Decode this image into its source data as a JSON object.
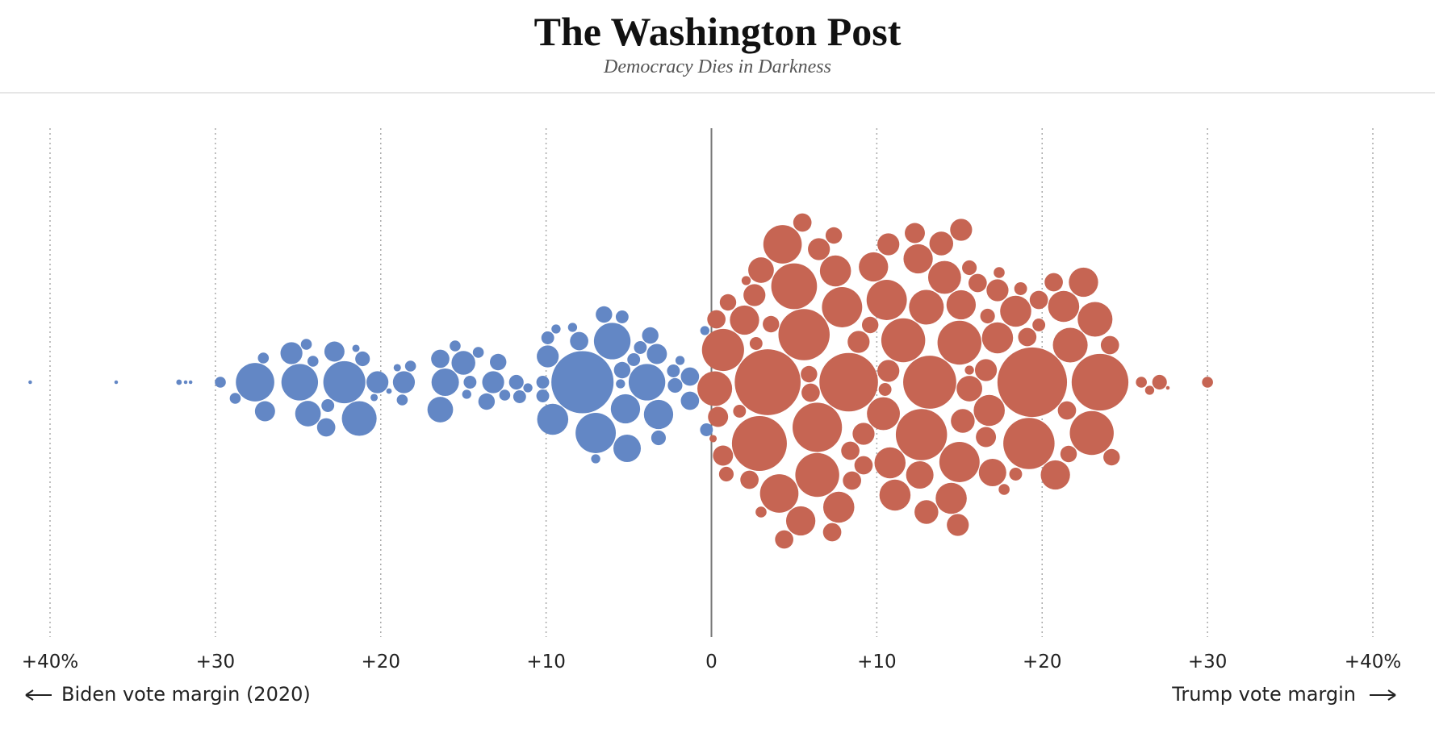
{
  "header": {
    "title": "The Washington Post",
    "tagline": "Democracy Dies in Darkness"
  },
  "chart_data": {
    "type": "beeswarm",
    "xlim": [
      -40,
      40
    ],
    "xticks": [
      {
        "value": -40,
        "label": "+40%"
      },
      {
        "value": -30,
        "label": "+30"
      },
      {
        "value": -20,
        "label": "+20"
      },
      {
        "value": -10,
        "label": "+10"
      },
      0,
      {
        "value": 10,
        "label": "+10"
      },
      {
        "value": 20,
        "label": "+20"
      },
      {
        "value": 30,
        "label": "+30"
      },
      {
        "value": 40,
        "label": "+40%"
      }
    ],
    "grid": true,
    "annotations": {
      "left": "Biden vote margin (2020)",
      "right": "Trump vote margin"
    },
    "series": [
      {
        "color": "#6387c5",
        "x": [
          -41.2,
          -36.0,
          -32.2,
          -31.8,
          -31.5,
          -29.7,
          -28.8,
          -27.6,
          -27.0,
          -27.1,
          -25.4,
          -24.9,
          -24.4,
          -22.8,
          -23.3,
          -22.2,
          -21.3,
          -24.1,
          -24.5,
          -23.2,
          -21.1,
          -20.2,
          -21.5,
          -20.4,
          -18.6,
          -18.7,
          -18.2,
          -19.0,
          -19.5,
          -16.1,
          -16.4,
          -16.4,
          -15.0,
          -14.6,
          -15.5,
          -14.8,
          -14.1,
          -13.6,
          -13.2,
          -12.9,
          -12.5,
          -11.8,
          -11.6,
          -11.1,
          -9.9,
          -9.6,
          -10.2,
          -9.9,
          -10.2,
          -9.4,
          -7.8,
          -8.0,
          -7.0,
          -6.0,
          -6.5,
          -5.2,
          -5.1,
          -5.4,
          -5.5,
          -3.9,
          -3.2,
          -5.4,
          -4.7,
          -3.7,
          -3.2,
          -3.3,
          -4.3,
          -2.3,
          -1.3,
          -2.2,
          -1.9,
          -1.3,
          -0.3,
          -0.4,
          -8.4,
          -7.0
        ],
        "sizes": [
          2,
          2,
          3,
          2,
          2,
          6,
          6,
          21,
          11,
          6,
          12,
          20,
          14,
          11,
          10,
          23,
          19,
          6,
          6,
          7,
          8,
          12,
          4,
          4,
          12,
          6,
          6,
          4,
          3,
          15,
          14,
          10,
          13,
          7,
          6,
          5,
          6,
          9,
          12,
          9,
          6,
          8,
          7,
          5,
          12,
          17,
          7,
          7,
          7,
          5,
          34,
          10,
          22,
          20,
          9,
          16,
          15,
          7,
          5,
          20,
          16,
          9,
          7,
          9,
          8,
          11,
          7,
          7,
          10,
          8,
          5,
          10,
          7,
          5,
          5,
          5
        ]
      },
      {
        "color": "#c66553",
        "x": [
          0.1,
          0.9,
          0.3,
          0.7,
          0.2,
          0.4,
          0.7,
          1.0,
          1.7,
          2.0,
          2.3,
          2.6,
          3.0,
          2.9,
          3.4,
          2.7,
          2.1,
          3.0,
          3.6,
          4.1,
          4.3,
          4.4,
          5.0,
          5.4,
          5.6,
          6.4,
          6.4,
          5.5,
          6.0,
          5.9,
          6.5,
          7.3,
          7.5,
          8.4,
          7.9,
          7.7,
          8.3,
          7.4,
          8.9,
          9.2,
          8.5,
          9.2,
          9.6,
          9.8,
          10.4,
          10.6,
          10.8,
          11.1,
          10.7,
          10.7,
          10.5,
          11.6,
          12.6,
          12.7,
          13.0,
          12.5,
          13.0,
          12.3,
          13.2,
          13.9,
          14.1,
          14.5,
          15.0,
          15.2,
          15.0,
          14.9,
          15.6,
          15.1,
          15.1,
          15.6,
          16.8,
          16.6,
          16.6,
          17.0,
          17.3,
          17.3,
          16.1,
          16.7,
          18.4,
          18.4,
          19.2,
          19.4,
          19.1,
          19.8,
          19.8,
          20.8,
          20.7,
          21.3,
          21.7,
          21.6,
          21.5,
          22.5,
          23.0,
          23.2,
          23.5,
          24.1,
          24.2,
          26.0,
          26.5,
          27.1,
          30.0,
          27.6,
          17.7,
          18.7,
          17.4,
          15.6
        ],
        "sizes": [
          4,
          8,
          10,
          23,
          19,
          11,
          11,
          9,
          7,
          16,
          10,
          12,
          14,
          30,
          36,
          7,
          5,
          6,
          9,
          21,
          21,
          10,
          25,
          16,
          28,
          27,
          24,
          10,
          10,
          9,
          12,
          10,
          17,
          10,
          22,
          17,
          32,
          9,
          12,
          10,
          10,
          12,
          9,
          16,
          18,
          22,
          17,
          17,
          12,
          12,
          7,
          24,
          15,
          28,
          19,
          16,
          13,
          11,
          29,
          13,
          18,
          17,
          24,
          13,
          22,
          12,
          14,
          16,
          12,
          8,
          17,
          11,
          12,
          15,
          17,
          12,
          10,
          8,
          17,
          7,
          28,
          38,
          10,
          10,
          7,
          16,
          10,
          17,
          19,
          9,
          10,
          16,
          24,
          19,
          31,
          10,
          9,
          6,
          5,
          8,
          6,
          2,
          6,
          7,
          6,
          5
        ]
      }
    ]
  }
}
